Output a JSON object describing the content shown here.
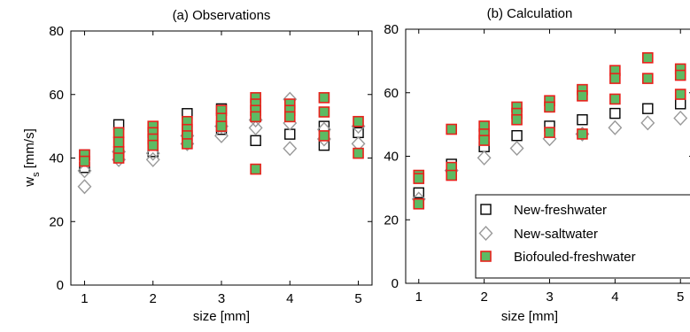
{
  "figure": {
    "ylabel_main": "w",
    "ylabel_sub": "s",
    "ylabel_unit": " [mm/s]"
  },
  "legend": {
    "entries": [
      "New-freshwater",
      "New-saltwater",
      "Biofouled-freshwater"
    ]
  },
  "colors": {
    "new_freshwater_edge": "#000000",
    "new_saltwater_edge": "#999999",
    "biofouled_fill": "#5dbb63",
    "biofouled_edge": "#e8221c"
  },
  "chart_data": [
    {
      "type": "scatter",
      "title": "(a) Observations",
      "xlabel": "size [mm]",
      "ylabel": "w_s [mm/s]",
      "xlim": [
        0.8,
        5.2
      ],
      "ylim": [
        0,
        80
      ],
      "xticks": [
        1,
        2,
        3,
        4,
        5
      ],
      "yticks": [
        0,
        20,
        40,
        60,
        80
      ],
      "grid": false,
      "series": [
        {
          "name": "New-freshwater",
          "marker": "square-open",
          "points": [
            [
              1,
              41
            ],
            [
              1,
              37
            ],
            [
              1.5,
              50.5
            ],
            [
              1.5,
              41
            ],
            [
              2,
              45
            ],
            [
              2,
              42
            ],
            [
              2.5,
              54
            ],
            [
              2.5,
              48
            ],
            [
              3,
              55.5
            ],
            [
              3,
              49
            ],
            [
              3.5,
              55
            ],
            [
              3.5,
              45.5
            ],
            [
              4,
              55
            ],
            [
              4,
              47.5
            ],
            [
              4.5,
              50
            ],
            [
              4.5,
              44
            ],
            [
              5,
              48
            ]
          ]
        },
        {
          "name": "New-saltwater",
          "marker": "diamond-open",
          "points": [
            [
              1,
              36
            ],
            [
              1,
              31
            ],
            [
              1.5,
              42
            ],
            [
              1.5,
              39.5
            ],
            [
              2,
              41.5
            ],
            [
              2,
              39.5
            ],
            [
              2.5,
              47
            ],
            [
              2.5,
              44.5
            ],
            [
              3,
              50
            ],
            [
              3,
              47
            ],
            [
              3.5,
              52
            ],
            [
              3.5,
              49.5
            ],
            [
              4,
              58.5
            ],
            [
              4,
              51
            ],
            [
              4,
              43
            ],
            [
              4.5,
              49
            ],
            [
              4.5,
              46
            ],
            [
              5,
              50
            ],
            [
              5,
              44.5
            ]
          ]
        },
        {
          "name": "Biofouled-freshwater",
          "marker": "square-filled",
          "points": [
            [
              1,
              41
            ],
            [
              1,
              39
            ],
            [
              1.5,
              48
            ],
            [
              1.5,
              45
            ],
            [
              1.5,
              42
            ],
            [
              1.5,
              40
            ],
            [
              2,
              50
            ],
            [
              2,
              48
            ],
            [
              2,
              46
            ],
            [
              2,
              44
            ],
            [
              2.5,
              51.5
            ],
            [
              2.5,
              49
            ],
            [
              2.5,
              47
            ],
            [
              2.5,
              44.5
            ],
            [
              3,
              55
            ],
            [
              3,
              52.5
            ],
            [
              3,
              50
            ],
            [
              3.5,
              59
            ],
            [
              3.5,
              57
            ],
            [
              3.5,
              55
            ],
            [
              3.5,
              53
            ],
            [
              3.5,
              36.5
            ],
            [
              4,
              57
            ],
            [
              4,
              55
            ],
            [
              4,
              53
            ],
            [
              4.5,
              59
            ],
            [
              4.5,
              54.5
            ],
            [
              4.5,
              47
            ],
            [
              5,
              51.5
            ],
            [
              5,
              41.5
            ]
          ]
        }
      ]
    },
    {
      "type": "scatter",
      "title": "(b) Calculation",
      "xlabel": "size [mm]",
      "ylabel": "",
      "xlim": [
        0.8,
        5.2
      ],
      "ylim": [
        0,
        80
      ],
      "xticks": [
        1,
        2,
        3,
        4,
        5
      ],
      "yticks": [
        0,
        20,
        40,
        60,
        80
      ],
      "grid": false,
      "legend_position": "bottom-right",
      "series": [
        {
          "name": "New-freshwater",
          "marker": "square-open",
          "points": [
            [
              1,
              28.5
            ],
            [
              1.5,
              37.5
            ],
            [
              2,
              43
            ],
            [
              2.5,
              46.5
            ],
            [
              3,
              49.5
            ],
            [
              3.5,
              51.5
            ],
            [
              4,
              53.5
            ],
            [
              4.5,
              55
            ],
            [
              5,
              56.5
            ]
          ]
        },
        {
          "name": "New-saltwater",
          "marker": "diamond-open",
          "points": [
            [
              1,
              26.5
            ],
            [
              1.5,
              35.5
            ],
            [
              2,
              39.5
            ],
            [
              2.5,
              42.5
            ],
            [
              3,
              45.5
            ],
            [
              3.5,
              47
            ],
            [
              4,
              49
            ],
            [
              4.5,
              50.5
            ],
            [
              5,
              52
            ]
          ]
        },
        {
          "name": "Biofouled-freshwater",
          "marker": "square-filled",
          "points": [
            [
              1,
              34
            ],
            [
              1,
              33
            ],
            [
              1,
              25
            ],
            [
              1.5,
              48.5
            ],
            [
              1.5,
              36.5
            ],
            [
              1.5,
              34
            ],
            [
              2,
              49.5
            ],
            [
              2,
              47
            ],
            [
              2,
              45
            ],
            [
              2.5,
              55.5
            ],
            [
              2.5,
              53.5
            ],
            [
              2.5,
              51.5
            ],
            [
              3,
              57.5
            ],
            [
              3,
              55.5
            ],
            [
              3,
              47.5
            ],
            [
              3.5,
              61
            ],
            [
              3.5,
              59
            ],
            [
              3.5,
              47
            ],
            [
              4,
              67
            ],
            [
              4,
              64.5
            ],
            [
              4,
              58
            ],
            [
              4.5,
              71
            ],
            [
              4.5,
              64.5
            ],
            [
              5,
              67.5
            ],
            [
              5,
              65.5
            ],
            [
              5,
              59.5
            ]
          ]
        }
      ]
    }
  ]
}
